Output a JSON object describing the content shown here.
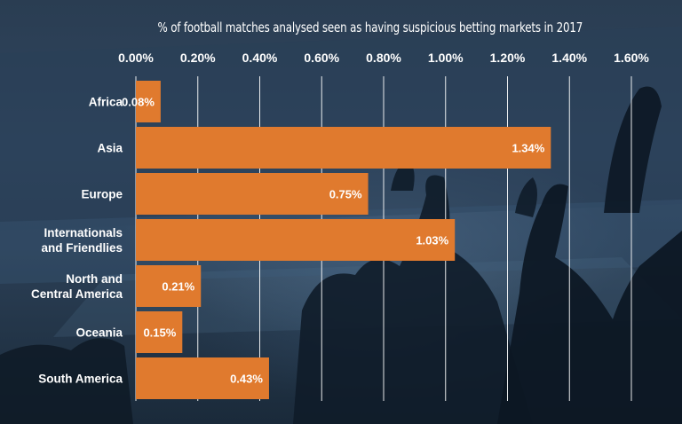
{
  "chart_data": {
    "type": "bar",
    "orientation": "horizontal",
    "title": "% of football matches analysed seen as having suspicious betting markets in 2017",
    "xlabel": "",
    "ylabel": "",
    "xlim": [
      0,
      1.6
    ],
    "ticks": [
      0,
      0.2,
      0.4,
      0.6,
      0.8,
      1.0,
      1.2,
      1.4,
      1.6
    ],
    "tick_labels": [
      "0.00%",
      "0.20%",
      "0.40%",
      "0.60%",
      "0.80%",
      "1.00%",
      "1.20%",
      "1.40%",
      "1.60%"
    ],
    "categories": [
      [
        "Africa"
      ],
      [
        "Asia"
      ],
      [
        "Europe"
      ],
      [
        "Internationals",
        "and Friendlies"
      ],
      [
        "North and",
        "Central America"
      ],
      [
        "Oceania"
      ],
      [
        "South America"
      ]
    ],
    "values": [
      0.08,
      1.34,
      0.75,
      1.03,
      0.21,
      0.15,
      0.43
    ],
    "value_labels": [
      "0.08%",
      "1.34%",
      "0.75%",
      "1.03%",
      "0.21%",
      "0.15%",
      "0.43%"
    ],
    "bar_color": "#e07a2e",
    "grid": true,
    "legend": "none"
  }
}
